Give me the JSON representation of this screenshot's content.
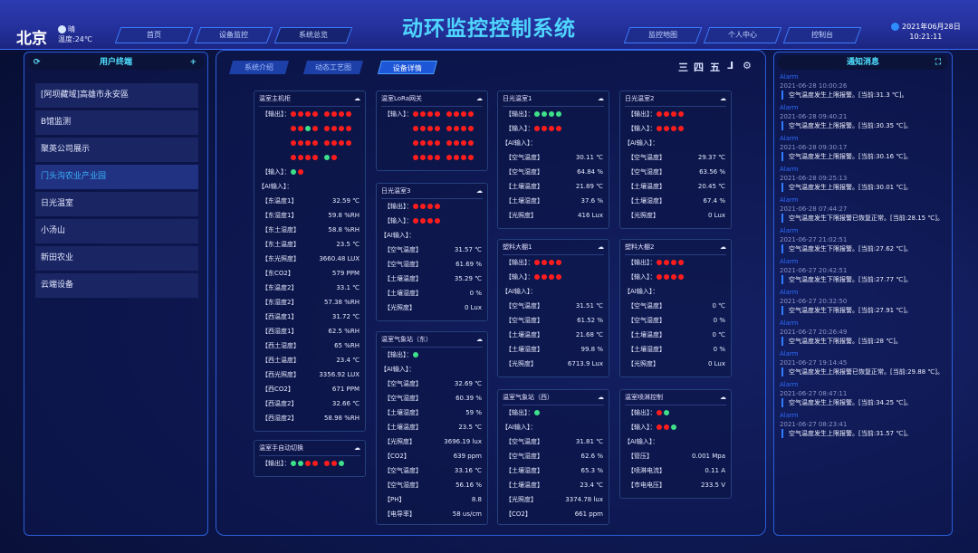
{
  "header": {
    "city": "北京",
    "weather": "晴",
    "temperature": "温度:24℃",
    "title": "动环监控控制系统",
    "nav_left": [
      "首页",
      "设备监控",
      "系统总览"
    ],
    "nav_right": [
      "监控地图",
      "个人中心",
      "控制台"
    ],
    "date": "2021年06月28日",
    "time": "10:21:11"
  },
  "sidebar": {
    "title": "用户终端",
    "items": [
      {
        "label": "[阿坝藏域]高雄市永安區",
        "active": false
      },
      {
        "label": "B馆监测",
        "active": false
      },
      {
        "label": "聚英公司展示",
        "active": false
      },
      {
        "label": "门头沟农业产业园",
        "active": true
      },
      {
        "label": "日光温室",
        "active": false
      },
      {
        "label": "小汤山",
        "active": false
      },
      {
        "label": "新田农业",
        "active": false
      },
      {
        "label": "云端设备",
        "active": false
      }
    ]
  },
  "main": {
    "tabs": [
      {
        "label": "系统介绍",
        "active": false
      },
      {
        "label": "动态工艺图",
        "active": false
      },
      {
        "label": "设备详情",
        "active": true
      }
    ],
    "toolbar": [
      "三",
      "四",
      "五",
      "⅃",
      "⚙"
    ]
  },
  "labels": {
    "output": "【输出】：",
    "input": "【输入】：",
    "ai": "【AI输入】："
  },
  "cards": [
    {
      "title": "温室主机柜",
      "col": 0,
      "outputs": [
        [
          "r",
          "r",
          "r",
          "r",
          "|",
          "r",
          "r",
          "r",
          "r"
        ],
        [
          "r",
          "r",
          "g",
          "r",
          "|",
          "r",
          "r",
          "r",
          "r"
        ],
        [
          "r",
          "r",
          "r",
          "r",
          "|",
          "r",
          "r",
          "r",
          "r"
        ],
        [
          "r",
          "r",
          "r",
          "r",
          "|",
          "g",
          "r"
        ]
      ],
      "inputs": [
        [
          "g",
          "r"
        ]
      ],
      "ai": [
        [
          "【东温度1】",
          "32.59 ℃"
        ],
        [
          "【东湿度1】",
          "59.8 %RH"
        ],
        [
          "【东土湿度】",
          "58.8 %RH"
        ],
        [
          "【东土温度】",
          "23.5 ℃"
        ],
        [
          "【东光照度】",
          "3660.48 LUX"
        ],
        [
          "【东CO2】",
          "579 PPM"
        ],
        [
          "【东温度2】",
          "33.1 ℃"
        ],
        [
          "【东湿度2】",
          "57.38 %RH"
        ],
        [
          "【西温度1】",
          "31.72 ℃"
        ],
        [
          "【西湿度1】",
          "62.5 %RH"
        ],
        [
          "【西土湿度】",
          "65 %RH"
        ],
        [
          "【西土温度】",
          "23.4 ℃"
        ],
        [
          "【西光照度】",
          "3356.92 LUX"
        ],
        [
          "【西CO2】",
          "671 PPM"
        ],
        [
          "【西温度2】",
          "32.66 ℃"
        ],
        [
          "【西湿度2】",
          "58.98 %RH"
        ]
      ]
    },
    {
      "title": "温室手自动切换",
      "col": 0,
      "outputs": [
        [
          "g",
          "g",
          "r",
          "r",
          "|",
          "r",
          "r",
          "g"
        ]
      ]
    },
    {
      "title": "温室LoRa网关",
      "col": 1,
      "inputs": [
        [
          "r",
          "r",
          "r",
          "r",
          "|",
          "r",
          "r",
          "r",
          "r"
        ],
        [
          "r",
          "r",
          "r",
          "r",
          "|",
          "r",
          "r",
          "r",
          "r"
        ],
        [
          "r",
          "r",
          "r",
          "r",
          "|",
          "r",
          "r",
          "r",
          "r"
        ],
        [
          "r",
          "r",
          "r",
          "r",
          "|",
          "r",
          "r",
          "r",
          "r"
        ]
      ]
    },
    {
      "title": "日光温室3",
      "col": 1,
      "outputs": [
        [
          "r",
          "r",
          "r",
          "r"
        ]
      ],
      "inputs": [
        [
          "r",
          "r",
          "r",
          "r"
        ]
      ],
      "ai": [
        [
          "【空气温度】",
          "31.57 ℃"
        ],
        [
          "【空气湿度】",
          "61.69 %"
        ],
        [
          "【土壤温度】",
          "35.29 ℃"
        ],
        [
          "【土壤湿度】",
          "0 %"
        ],
        [
          "【光照度】",
          "0 Lux"
        ]
      ]
    },
    {
      "title": "温室气象站（东）",
      "col": 1,
      "outputs": [
        [
          "g"
        ]
      ],
      "ai": [
        [
          "【空气温度】",
          "32.69 ℃"
        ],
        [
          "【空气湿度】",
          "60.39 %"
        ],
        [
          "【土壤湿度】",
          "59 %"
        ],
        [
          "【土壤温度】",
          "23.5 ℃"
        ],
        [
          "【光照度】",
          "3696.19 lux"
        ],
        [
          "【CO2】",
          "639 ppm"
        ],
        [
          "【空气温度】",
          "33.16 ℃"
        ],
        [
          "【空气湿度】",
          "56.16 %"
        ],
        [
          "【PH】",
          "8.8"
        ],
        [
          "【电导率】",
          "58 us/cm"
        ]
      ]
    },
    {
      "title": "日光温室1",
      "col": 2,
      "outputs": [
        [
          "g",
          "g",
          "g",
          "g"
        ]
      ],
      "inputs": [
        [
          "r",
          "r",
          "r",
          "r"
        ]
      ],
      "ai": [
        [
          "【空气温度】",
          "30.11 ℃"
        ],
        [
          "【空气湿度】",
          "64.84 %"
        ],
        [
          "【土壤温度】",
          "21.89 ℃"
        ],
        [
          "【土壤湿度】",
          "37.6 %"
        ],
        [
          "【光照度】",
          "416 Lux"
        ]
      ]
    },
    {
      "title": "塑料大棚1",
      "col": 2,
      "outputs": [
        [
          "r",
          "r",
          "r",
          "r"
        ]
      ],
      "inputs": [
        [
          "r",
          "r",
          "r",
          "r"
        ]
      ],
      "ai": [
        [
          "【空气温度】",
          "31.51 ℃"
        ],
        [
          "【空气湿度】",
          "61.52 %"
        ],
        [
          "【土壤温度】",
          "21.68 ℃"
        ],
        [
          "【土壤湿度】",
          "99.8 %"
        ],
        [
          "【光照度】",
          "6713.9 Lux"
        ]
      ]
    },
    {
      "title": "温室气象站（西）",
      "col": 2,
      "outputs": [
        [
          "g"
        ]
      ],
      "ai": [
        [
          "【空气温度】",
          "31.81 ℃"
        ],
        [
          "【空气湿度】",
          "62.6 %"
        ],
        [
          "【土壤湿度】",
          "65.3 %"
        ],
        [
          "【土壤温度】",
          "23.4 ℃"
        ],
        [
          "【光照度】",
          "3374.78 lux"
        ],
        [
          "【CO2】",
          "661 ppm"
        ]
      ]
    },
    {
      "title": "日光温室2",
      "col": 3,
      "outputs": [
        [
          "r",
          "r",
          "r",
          "r"
        ]
      ],
      "inputs": [
        [
          "r",
          "r",
          "r",
          "r"
        ]
      ],
      "ai": [
        [
          "【空气温度】",
          "29.37 ℃"
        ],
        [
          "【空气湿度】",
          "63.56 %"
        ],
        [
          "【土壤温度】",
          "20.45 ℃"
        ],
        [
          "【土壤湿度】",
          "67.4 %"
        ],
        [
          "【光照度】",
          "0 Lux"
        ]
      ]
    },
    {
      "title": "塑料大棚2",
      "col": 3,
      "outputs": [
        [
          "r",
          "r",
          "r",
          "r"
        ]
      ],
      "inputs": [
        [
          "r",
          "r",
          "r",
          "r"
        ]
      ],
      "ai": [
        [
          "【空气温度】",
          "0 ℃"
        ],
        [
          "【空气湿度】",
          "0 %"
        ],
        [
          "【土壤温度】",
          "0 ℃"
        ],
        [
          "【土壤湿度】",
          "0 %"
        ],
        [
          "【光照度】",
          "0 Lux"
        ]
      ]
    },
    {
      "title": "温室喷淋控制",
      "col": 3,
      "outputs": [
        [
          "r",
          "g"
        ]
      ],
      "inputs": [
        [
          "r",
          "r",
          "g"
        ]
      ],
      "ai": [
        [
          "【管压】",
          "0.001 Mpa"
        ],
        [
          "【喷淋电流】",
          "0.11 A"
        ],
        [
          "【市电电压】",
          "233.5 V"
        ]
      ]
    }
  ],
  "alarms": {
    "title": "通知消息",
    "items": [
      {
        "tag": "Alarm",
        "time": "2021-06-28 10:00:26",
        "msg": "空气温度发生上限报警。[当前:31.3 ℃]。"
      },
      {
        "tag": "Alarm",
        "time": "2021-06-28 09:40:21",
        "msg": "空气温度发生上限报警。[当前:30.35 ℃]。"
      },
      {
        "tag": "Alarm",
        "time": "2021-06-28 09:30:17",
        "msg": "空气温度发生上限报警。[当前:30.16 ℃]。"
      },
      {
        "tag": "Alarm",
        "time": "2021-06-28 09:25:13",
        "msg": "空气温度发生上限报警。[当前:30.01 ℃]。"
      },
      {
        "tag": "Alarm",
        "time": "2021-06-28 07:44:27",
        "msg": "空气温度发生下限报警已恢复正常。[当前:28.15 ℃]。"
      },
      {
        "tag": "Alarm",
        "time": "2021-06-27 21:02:51",
        "msg": "空气温度发生下限报警。[当前:27.62 ℃]。"
      },
      {
        "tag": "Alarm",
        "time": "2021-06-27 20:42:51",
        "msg": "空气温度发生下限报警。[当前:27.77 ℃]。"
      },
      {
        "tag": "Alarm",
        "time": "2021-06-27 20:32:50",
        "msg": "空气温度发生下限报警。[当前:27.91 ℃]。"
      },
      {
        "tag": "Alarm",
        "time": "2021-06-27 20:26:49",
        "msg": "空气温度发生下限报警。[当前:28 ℃]。"
      },
      {
        "tag": "Alarm",
        "time": "2021-06-27 19:14:45",
        "msg": "空气温度发生上限报警已恢复正常。[当前:29.88 ℃]。"
      },
      {
        "tag": "Alarm",
        "time": "2021-06-27 08:47:11",
        "msg": "空气温度发生上限报警。[当前:34.25 ℃]。"
      },
      {
        "tag": "Alarm",
        "time": "2021-06-27 08:23:41",
        "msg": "空气温度发生上限报警。[当前:31.57 ℃]。"
      }
    ]
  },
  "colors": {
    "accent": "#4fd6ff",
    "on": "#3ee08a",
    "off": "#ff1c1c",
    "alarm": "#2f6cff"
  }
}
